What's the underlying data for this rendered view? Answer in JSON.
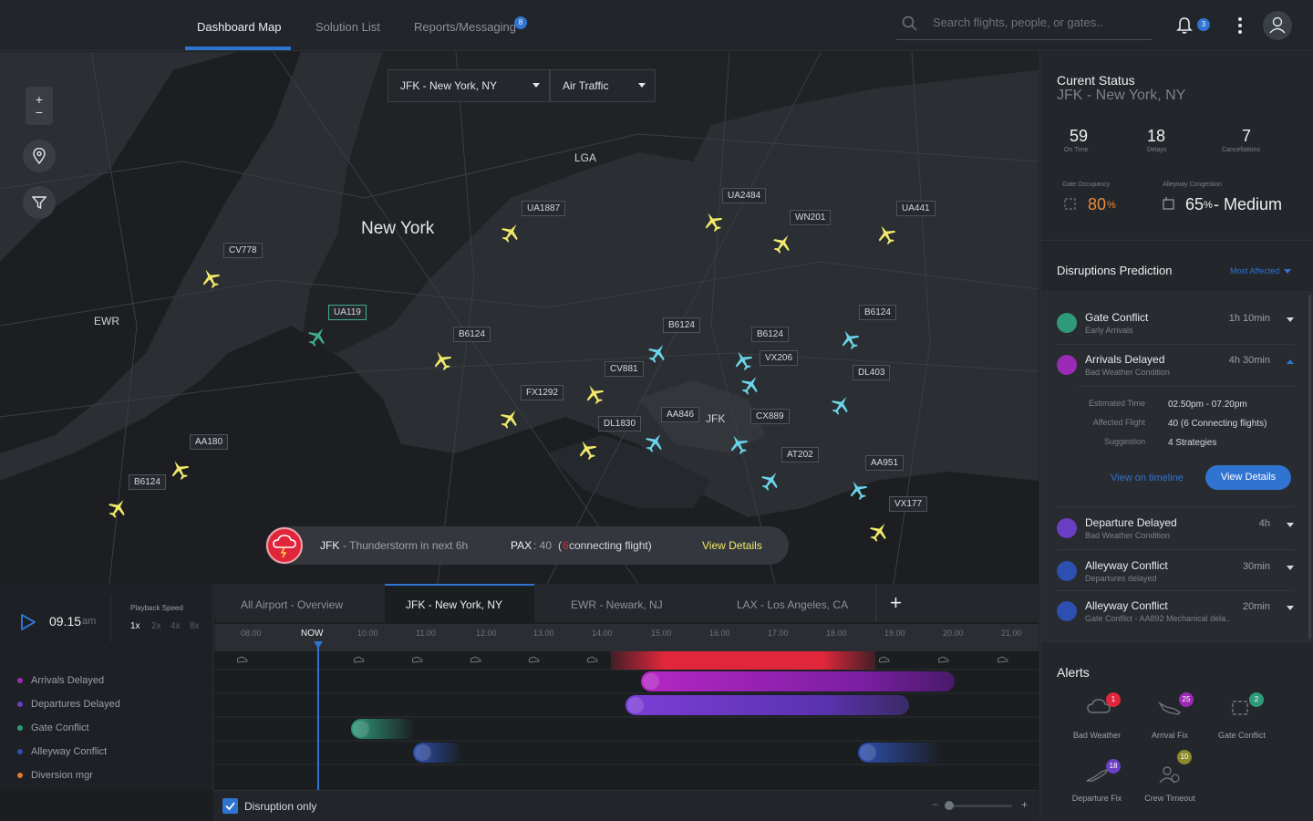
{
  "nav": {
    "tabs": [
      {
        "label": "Dashboard Map"
      },
      {
        "label": "Solution List"
      },
      {
        "label": "Reports/Messaging",
        "badge": "8"
      }
    ],
    "search_placeholder": "Search flights, people, or gates..",
    "notification_count": "3"
  },
  "map": {
    "airport_select": "JFK  - New York, NY",
    "layer_select": "Air Traffic",
    "places": {
      "new_york": "New York",
      "lga": "LGA",
      "ewr": "EWR",
      "jfk": "JFK"
    },
    "flights": [
      {
        "id": "CV778",
        "color": "#f2e96b"
      },
      {
        "id": "UA1887",
        "color": "#f2e96b"
      },
      {
        "id": "UA2484",
        "color": "#f2e96b"
      },
      {
        "id": "WN201",
        "color": "#f2e96b"
      },
      {
        "id": "UA441",
        "color": "#f2e96b"
      },
      {
        "id": "UA119",
        "color": "#3fae8c"
      },
      {
        "id": "B6124",
        "color": "#f2e96b"
      },
      {
        "id": "B6124",
        "color": "#6ad5ea"
      },
      {
        "id": "B6124",
        "color": "#6ad5ea"
      },
      {
        "id": "VX206",
        "color": "#6ad5ea"
      },
      {
        "id": "B6124",
        "color": "#6ad5ea"
      },
      {
        "id": "DL403",
        "color": "#6ad5ea"
      },
      {
        "id": "CV881",
        "color": "#f2e96b"
      },
      {
        "id": "FX1292",
        "color": "#f2e96b"
      },
      {
        "id": "DL1830",
        "color": "#f2e96b"
      },
      {
        "id": "AA846",
        "color": "#6ad5ea"
      },
      {
        "id": "CX889",
        "color": "#6ad5ea"
      },
      {
        "id": "AT202",
        "color": "#6ad5ea"
      },
      {
        "id": "AA951",
        "color": "#6ad5ea"
      },
      {
        "id": "VX177",
        "color": "#f2e96b"
      },
      {
        "id": "AA180",
        "color": "#f2e96b"
      },
      {
        "id": "B6124",
        "color": "#f2e96b"
      }
    ],
    "alert": {
      "airport": "JFK",
      "message": " - Thunderstorm in next 6h",
      "pax_label": "PAX",
      "pax_value": ": 40",
      "paren_open": "(",
      "connecting_count": "6",
      "connecting_text": " connecting flight)",
      "action": "View Details"
    }
  },
  "timeline": {
    "time": "09.15",
    "ampm": "am",
    "playback_label": "Playback Speed",
    "speeds": [
      "1x",
      "2x",
      "4x",
      "8x"
    ],
    "tabs": [
      {
        "label": "All Airport - Overview"
      },
      {
        "label": "JFK  - New York, NY"
      },
      {
        "label": "EWR  - Newark, NJ"
      },
      {
        "label": "LAX  - Los Angeles, CA"
      }
    ],
    "add": "+",
    "ticks": [
      "08.00",
      "NOW",
      "10.00",
      "11.00",
      "12.00",
      "13.00",
      "14.00",
      "15.00",
      "16.00",
      "17.00",
      "18.00",
      "19.00",
      "20.00",
      "21.00"
    ],
    "rows": [
      {
        "label": "Arrivals Delayed",
        "color": "#9b2bb6"
      },
      {
        "label": "Departures Delayed",
        "color": "#6a3fc3"
      },
      {
        "label": "Gate Conflict",
        "color": "#2f9a78"
      },
      {
        "label": "Alleyway Conflict",
        "color": "#2d4fb0"
      },
      {
        "label": "Diversion mgr",
        "color": "#e07a2e"
      }
    ],
    "disruption_only": "Disruption only",
    "zoom_minus": "−",
    "zoom_plus": "+"
  },
  "status": {
    "title": "Curent  Status",
    "airport": "JFK  - New York, NY",
    "on_time": "59",
    "on_time_label": "On Time",
    "delays": "18",
    "delays_label": "Delays",
    "cancellations": "7",
    "cancellations_label": "Cancellations",
    "gate_occupancy_label": "Gate Occupancy",
    "gate_occupancy": "80",
    "gate_occupancy_unit": "%",
    "alleyway_label": "Alleyway Congestion",
    "alleyway_value": "65",
    "alleyway_unit": "%",
    "alleyway_level": " - Medium"
  },
  "disruptions": {
    "title": "Disruptions Prediction",
    "filter": "Most Affected",
    "items": [
      {
        "title": "Gate Conflict",
        "sub": "Early Arrivals",
        "time": "1h 10min",
        "color": "#2f9a78"
      },
      {
        "title": "Arrivals Delayed",
        "sub": "Bad Weather Condition",
        "time": "4h 30min",
        "color": "#9b2bb6"
      },
      {
        "title": "Departure Delayed",
        "sub": "Bad Weather Condition",
        "time": "4h",
        "color": "#6a3fc3"
      },
      {
        "title": "Alleyway Conflict",
        "sub": "Departures delayed",
        "time": "30min",
        "color": "#2d4fb0"
      },
      {
        "title": "Alleyway Conflict",
        "sub": "Gate Conflict - AA892 Mechanical dela..",
        "time": "20min",
        "color": "#2d4fb0"
      }
    ],
    "detail": {
      "est_label": "Estimated Time",
      "est_value": "02.50pm - 07.20pm",
      "aff_label": "Affected Flight",
      "aff_value": "40 (6 Connecting flights)",
      "sug_label": "Suggestion",
      "sug_value": "4 Strategies",
      "timeline_link": "View on timeline",
      "details_button": "View Details"
    }
  },
  "alerts": {
    "title": "Alerts",
    "items": [
      {
        "label": "Bad Weather",
        "count": "1",
        "color": "#e0263b"
      },
      {
        "label": "Arrival Fix",
        "count": "25",
        "color": "#9b2bb6"
      },
      {
        "label": "Gate Conflict",
        "count": "2",
        "color": "#2f9a78"
      },
      {
        "label": "Departure Fix",
        "count": "18",
        "color": "#6a3fc3"
      },
      {
        "label": "Crew Timeout",
        "count": "10",
        "color": "#8a8a2a"
      }
    ]
  }
}
